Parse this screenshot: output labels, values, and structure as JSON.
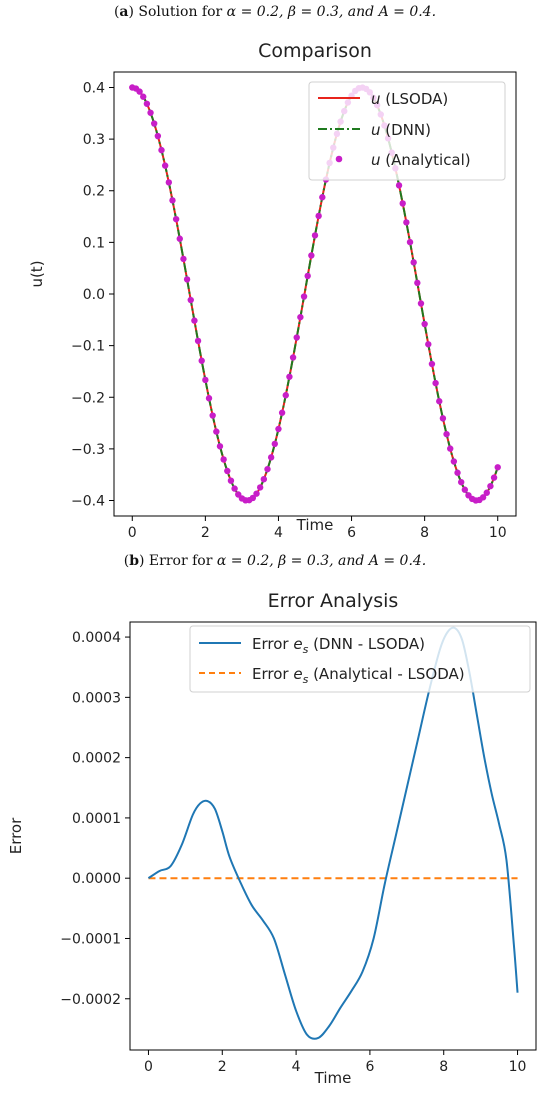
{
  "captions": {
    "a": {
      "letter": "a",
      "prefix": " Solution for ",
      "math": "α = 0.2, β = 0.3, and A = 0.4."
    },
    "b": {
      "letter": "b",
      "prefix": " Error for ",
      "math": "α = 0.2, β = 0.3, and A = 0.4."
    }
  },
  "chart_data": [
    {
      "type": "line",
      "title": "Comparison",
      "xlabel": "Time",
      "ylabel": "u(t)",
      "xlim": [
        -0.5,
        10.5
      ],
      "ylim": [
        -0.43,
        0.43
      ],
      "xticks": [
        0,
        2,
        4,
        6,
        8,
        10
      ],
      "yticks": [
        -0.4,
        -0.3,
        -0.2,
        -0.1,
        0.0,
        0.1,
        0.2,
        0.3,
        0.4
      ],
      "xtick_labels": [
        "0",
        "2",
        "4",
        "6",
        "8",
        "10"
      ],
      "ytick_labels": [
        "−0.4",
        "−0.3",
        "−0.2",
        "−0.1",
        "0.0",
        "0.1",
        "0.2",
        "0.3",
        "0.4"
      ],
      "legend_position": "top-right",
      "grid": false,
      "x_range": [
        0,
        10
      ],
      "series": [
        {
          "name": "u (LSODA)",
          "name_italic": "u",
          "name_rest": " (LSODA)",
          "style": "solid",
          "color": "#e8241c",
          "function": "0.4*cos(t)"
        },
        {
          "name": "u (DNN)",
          "name_italic": "u",
          "name_rest": " (DNN)",
          "style": "dashdot",
          "color": "#1f7a1f",
          "function": "0.4*cos(t)"
        },
        {
          "name": "u (Analytical)",
          "name_italic": "u",
          "name_rest": " (Analytical)",
          "style": "markers",
          "color": "#c81ec8",
          "function": "0.4*cos(t)",
          "n_points": 101
        }
      ]
    },
    {
      "type": "line",
      "title": "Error Analysis",
      "xlabel": "Time",
      "ylabel": "Error",
      "xlim": [
        -0.5,
        10.5
      ],
      "ylim": [
        -0.000285,
        0.000425
      ],
      "xticks": [
        0,
        2,
        4,
        6,
        8,
        10
      ],
      "yticks": [
        -0.0002,
        -0.0001,
        0.0,
        0.0001,
        0.0002,
        0.0003,
        0.0004
      ],
      "xtick_labels": [
        "0",
        "2",
        "4",
        "6",
        "8",
        "10"
      ],
      "ytick_labels": [
        "−0.0002",
        "−0.0001",
        "0.0000",
        "0.0001",
        "0.0002",
        "0.0003",
        "0.0004"
      ],
      "legend_position": "top-right",
      "grid": false,
      "series": [
        {
          "name": "Error e_s (DNN - LSODA)",
          "label_pre": "Error ",
          "label_var": "e",
          "label_sub": "s",
          "label_post": " (DNN - LSODA)",
          "style": "solid",
          "color": "#1f77b4",
          "x": [
            0,
            0.3,
            0.6,
            0.9,
            1.2,
            1.4,
            1.6,
            1.8,
            2.0,
            2.2,
            2.5,
            2.8,
            3.1,
            3.4,
            3.7,
            4.0,
            4.3,
            4.6,
            4.9,
            5.2,
            5.5,
            5.8,
            6.1,
            6.4,
            6.7,
            7.0,
            7.3,
            7.6,
            7.9,
            8.1,
            8.3,
            8.5,
            8.7,
            8.9,
            9.1,
            9.3,
            9.5,
            9.7,
            9.9,
            10.0
          ],
          "y": [
            0.0,
            1.2e-05,
            2e-05,
            5.5e-05,
            0.000105,
            0.000124,
            0.000128,
            0.000115,
            7.8e-05,
            3.5e-05,
            -8e-06,
            -4.5e-05,
            -7e-05,
            -0.0001,
            -0.00016,
            -0.00022,
            -0.00026,
            -0.000265,
            -0.000245,
            -0.000215,
            -0.000187,
            -0.000155,
            -0.0001,
            -1e-05,
            7e-05,
            0.00015,
            0.00023,
            0.00031,
            0.00038,
            0.000408,
            0.000415,
            0.000395,
            0.00034,
            0.00027,
            0.0002,
            0.00014,
            9e-05,
            3e-05,
            -0.00011,
            -0.00019
          ]
        },
        {
          "name": "Error e_s (Analytical - LSODA)",
          "label_pre": "Error ",
          "label_var": "e",
          "label_sub": "s",
          "label_post": " (Analytical - LSODA)",
          "style": "dashed",
          "color": "#ff7f0e",
          "x": [
            0,
            10
          ],
          "y": [
            0,
            0
          ]
        }
      ]
    }
  ]
}
